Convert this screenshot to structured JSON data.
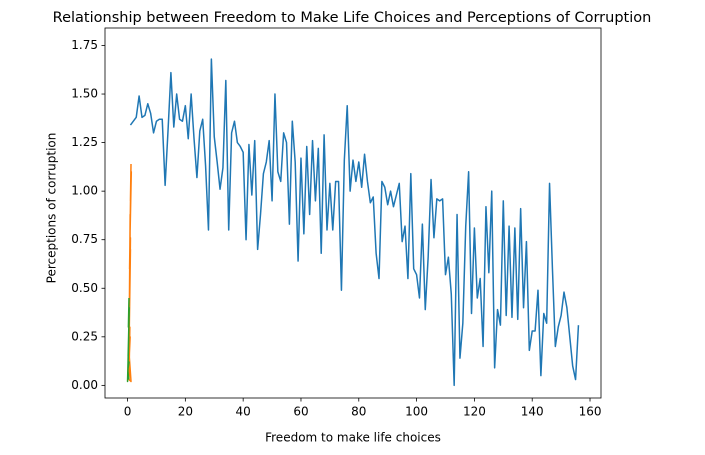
{
  "chart_data": {
    "type": "line",
    "title": "Relationship between Freedom to Make Life Choices and Perceptions of Corruption",
    "x_label": "Freedom to make life choices",
    "y_label": "Perceptions of corruption",
    "xlim": [
      -7.8,
      163.8
    ],
    "ylim": [
      -0.065,
      1.84
    ],
    "xticks": [
      0,
      20,
      40,
      60,
      80,
      100,
      120,
      140,
      160
    ],
    "yticks": [
      {
        "value": 0,
        "label": "0.00"
      },
      0.25,
      {
        "value": 0.5,
        "label": "0.50"
      },
      0.75,
      {
        "value": 1,
        "label": "1.00"
      },
      1.25,
      {
        "value": 1.5,
        "label": "1.50"
      },
      1.75
    ],
    "grid": false,
    "series": [
      {
        "color": "#1f77b4",
        "x": [
          1,
          2,
          3,
          4,
          5,
          6,
          7,
          8,
          9,
          10,
          11,
          12,
          13,
          14,
          15,
          16,
          17,
          18,
          19,
          20,
          21,
          22,
          23,
          24,
          25,
          26,
          27,
          28,
          29,
          30,
          31,
          32,
          33,
          34,
          35,
          36,
          37,
          38,
          39,
          40,
          41,
          42,
          43,
          44,
          45,
          46,
          47,
          48,
          49,
          50,
          51,
          52,
          53,
          54,
          55,
          56,
          57,
          58,
          59,
          60,
          61,
          62,
          63,
          64,
          65,
          66,
          67,
          68,
          69,
          70,
          71,
          72,
          73,
          74,
          75,
          76,
          77,
          78,
          79,
          80,
          81,
          82,
          83,
          84,
          85,
          86,
          87,
          88,
          89,
          90,
          91,
          92,
          93,
          94,
          95,
          96,
          97,
          98,
          99,
          100,
          101,
          102,
          103,
          104,
          105,
          106,
          107,
          108,
          109,
          110,
          111,
          112,
          113,
          114,
          115,
          116,
          117,
          118,
          119,
          120,
          121,
          122,
          123,
          124,
          125,
          126,
          127,
          128,
          129,
          130,
          131,
          132,
          133,
          134,
          135,
          136,
          137,
          138,
          139,
          140,
          141,
          142,
          143,
          144,
          145,
          146,
          147,
          148,
          149,
          150,
          151,
          152,
          153,
          154,
          155,
          156
        ],
        "values": [
          1.34,
          1.36,
          1.38,
          1.49,
          1.38,
          1.39,
          1.45,
          1.4,
          1.3,
          1.36,
          1.37,
          1.37,
          1.03,
          1.31,
          1.61,
          1.33,
          1.5,
          1.37,
          1.36,
          1.44,
          1.27,
          1.5,
          1.27,
          1.07,
          1.31,
          1.37,
          1.13,
          0.8,
          1.68,
          1.28,
          1.15,
          1.01,
          1.12,
          1.57,
          0.8,
          1.3,
          1.36,
          1.25,
          1.23,
          1.2,
          0.75,
          1.24,
          0.98,
          1.26,
          0.7,
          0.88,
          1.09,
          1.15,
          1.26,
          0.95,
          1.5,
          1.1,
          1.05,
          1.3,
          1.25,
          0.83,
          1.36,
          1.15,
          0.64,
          1.17,
          0.78,
          1.23,
          0.88,
          1.26,
          0.95,
          1.22,
          0.68,
          1.29,
          0.8,
          1.04,
          0.8,
          1.05,
          1.05,
          0.49,
          1.16,
          1.44,
          1.0,
          1.16,
          1.05,
          1.15,
          1.02,
          1.19,
          1.05,
          0.94,
          0.97,
          0.68,
          0.55,
          1.05,
          1.02,
          0.93,
          1.0,
          0.92,
          0.98,
          1.04,
          0.74,
          0.82,
          0.55,
          1.09,
          0.6,
          0.57,
          0.45,
          0.83,
          0.39,
          0.66,
          1.06,
          0.76,
          0.96,
          0.95,
          0.96,
          0.57,
          0.66,
          0.47,
          0.0,
          0.88,
          0.14,
          0.32,
          0.82,
          1.1,
          0.37,
          0.81,
          0.45,
          0.55,
          0.2,
          0.92,
          0.58,
          1.0,
          0.09,
          0.39,
          0.31,
          0.95,
          0.36,
          0.82,
          0.35,
          0.81,
          0.34,
          0.91,
          0.4,
          0.74,
          0.18,
          0.28,
          0.28,
          0.49,
          0.05,
          0.37,
          0.32,
          1.04,
          0.6,
          0.2,
          0.3,
          0.36,
          0.48,
          0.4,
          0.25,
          0.1,
          0.03,
          0.31
        ]
      },
      {
        "color": "#ff7f0e",
        "x": [
          1.2,
          1.0,
          1.3,
          0.9,
          1.1,
          0.7,
          1.0,
          0.8,
          0.9,
          0.6,
          0.7,
          0.5,
          1.0,
          0.4,
          0.8,
          0.5,
          1.2,
          0.6,
          0.9,
          0.3
        ],
        "values": [
          1.14,
          0.95,
          1.1,
          0.8,
          1.03,
          0.6,
          0.76,
          0.5,
          0.88,
          0.35,
          0.45,
          0.2,
          0.7,
          0.08,
          0.3,
          0.03,
          0.02,
          0.15,
          0.25,
          0.05
        ]
      },
      {
        "color": "#2ca02c",
        "x": [
          0.5,
          0.3,
          0.6,
          0.2,
          0.4,
          0.1,
          0.3,
          0.0,
          0.2,
          0.5,
          0.1,
          0.4
        ],
        "values": [
          0.45,
          0.3,
          0.4,
          0.15,
          0.25,
          0.05,
          0.2,
          0.02,
          0.1,
          0.12,
          0.08,
          0.03
        ]
      }
    ]
  }
}
